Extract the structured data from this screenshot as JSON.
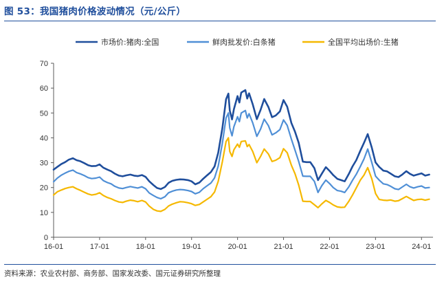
{
  "figure": {
    "title": "图 53：我国猪肉价格波动情况（元/公斤）",
    "source": "资料来源：农业农村部、商务部、国家发改委、国元证券研究所整理"
  },
  "chart_data": {
    "type": "line",
    "title": "",
    "xlabel": "",
    "ylabel": "",
    "ylim": [
      0,
      70
    ],
    "yticks": [
      0,
      10,
      20,
      30,
      40,
      50,
      60,
      70
    ],
    "xlim": [
      2016.0,
      2024.25
    ],
    "xtick_labels": [
      "16-01",
      "17-01",
      "18-01",
      "19-01",
      "20-01",
      "21-01",
      "22-01",
      "23-01",
      "24-01"
    ],
    "xtick_values": [
      2016,
      2017,
      2018,
      2019,
      2020,
      2021,
      2022,
      2023,
      2024
    ],
    "grid": false,
    "legend": "top",
    "series": [
      {
        "name": "市场价:猪肉:全国",
        "color": "#1f4e9c",
        "x": [
          2016.0,
          2016.08,
          2016.17,
          2016.25,
          2016.33,
          2016.42,
          2016.5,
          2016.58,
          2016.67,
          2016.75,
          2016.83,
          2016.92,
          2017.0,
          2017.08,
          2017.17,
          2017.25,
          2017.33,
          2017.42,
          2017.5,
          2017.58,
          2017.67,
          2017.75,
          2017.83,
          2017.92,
          2018.0,
          2018.08,
          2018.17,
          2018.25,
          2018.33,
          2018.42,
          2018.5,
          2018.58,
          2018.67,
          2018.75,
          2018.83,
          2018.92,
          2019.0,
          2019.08,
          2019.17,
          2019.25,
          2019.33,
          2019.42,
          2019.5,
          2019.58,
          2019.67,
          2019.75,
          2019.8,
          2019.83,
          2019.88,
          2019.92,
          2020.0,
          2020.04,
          2020.08,
          2020.17,
          2020.21,
          2020.25,
          2020.33,
          2020.42,
          2020.5,
          2020.58,
          2020.67,
          2020.75,
          2020.83,
          2020.92,
          2021.0,
          2021.08,
          2021.17,
          2021.25,
          2021.33,
          2021.42,
          2021.5,
          2021.58,
          2021.67,
          2021.75,
          2021.83,
          2021.92,
          2022.0,
          2022.08,
          2022.17,
          2022.25,
          2022.33,
          2022.42,
          2022.5,
          2022.58,
          2022.67,
          2022.75,
          2022.83,
          2022.92,
          2023.0,
          2023.08,
          2023.17,
          2023.25,
          2023.33,
          2023.42,
          2023.5,
          2023.58,
          2023.67,
          2023.75,
          2023.83,
          2023.92,
          2024.0,
          2024.08,
          2024.17
        ],
        "values": [
          27.2,
          28.3,
          29.5,
          30.2,
          31.2,
          31.8,
          31.0,
          30.6,
          29.8,
          29.0,
          28.6,
          28.7,
          29.3,
          28.0,
          27.2,
          26.6,
          25.6,
          24.8,
          24.5,
          24.9,
          25.2,
          24.8,
          24.6,
          25.0,
          24.3,
          22.5,
          21.0,
          19.8,
          19.4,
          20.2,
          21.9,
          22.7,
          23.1,
          23.3,
          23.2,
          23.0,
          22.5,
          21.3,
          22.0,
          23.5,
          24.8,
          26.2,
          28.5,
          34.0,
          44.0,
          55.5,
          57.8,
          51.0,
          47.4,
          51.5,
          56.8,
          54.2,
          58.2,
          59.2,
          55.8,
          57.9,
          53.5,
          47.5,
          51.2,
          55.6,
          52.4,
          48.3,
          49.0,
          50.6,
          55.2,
          52.5,
          46.0,
          42.4,
          38.0,
          30.4,
          30.2,
          30.2,
          27.8,
          23.0,
          25.5,
          28.2,
          26.7,
          25.0,
          23.5,
          23.0,
          22.5,
          25.5,
          28.5,
          31.0,
          34.8,
          38.0,
          41.5,
          36.0,
          30.1,
          28.3,
          26.8,
          26.5,
          25.6,
          24.5,
          24.2,
          25.2,
          26.6,
          25.5,
          24.8,
          25.3,
          25.7,
          24.8,
          25.2
        ]
      },
      {
        "name": "鲜肉批发价:白条猪",
        "color": "#4f8fd6",
        "x": [
          2016.0,
          2016.08,
          2016.17,
          2016.25,
          2016.33,
          2016.42,
          2016.5,
          2016.58,
          2016.67,
          2016.75,
          2016.83,
          2016.92,
          2017.0,
          2017.08,
          2017.17,
          2017.25,
          2017.33,
          2017.42,
          2017.5,
          2017.58,
          2017.67,
          2017.75,
          2017.83,
          2017.92,
          2018.0,
          2018.08,
          2018.17,
          2018.25,
          2018.33,
          2018.42,
          2018.5,
          2018.58,
          2018.67,
          2018.75,
          2018.83,
          2018.92,
          2019.0,
          2019.08,
          2019.17,
          2019.25,
          2019.33,
          2019.42,
          2019.5,
          2019.58,
          2019.67,
          2019.75,
          2019.8,
          2019.83,
          2019.88,
          2019.92,
          2020.0,
          2020.04,
          2020.08,
          2020.17,
          2020.21,
          2020.25,
          2020.33,
          2020.42,
          2020.5,
          2020.58,
          2020.67,
          2020.75,
          2020.83,
          2020.92,
          2021.0,
          2021.08,
          2021.17,
          2021.25,
          2021.33,
          2021.42,
          2021.5,
          2021.58,
          2021.67,
          2021.75,
          2021.83,
          2021.92,
          2022.0,
          2022.08,
          2022.17,
          2022.25,
          2022.33,
          2022.42,
          2022.5,
          2022.58,
          2022.67,
          2022.75,
          2022.83,
          2022.92,
          2023.0,
          2023.08,
          2023.17,
          2023.25,
          2023.33,
          2023.42,
          2023.5,
          2023.58,
          2023.67,
          2023.75,
          2023.83,
          2023.92,
          2024.0,
          2024.08,
          2024.17
        ],
        "values": [
          22.3,
          23.8,
          25.0,
          25.8,
          26.5,
          27.0,
          26.0,
          25.5,
          24.8,
          24.0,
          23.6,
          23.8,
          24.2,
          22.8,
          22.0,
          21.5,
          20.5,
          19.8,
          19.6,
          20.0,
          20.4,
          20.1,
          19.8,
          20.3,
          19.5,
          17.8,
          16.8,
          16.0,
          15.5,
          16.3,
          17.9,
          18.5,
          19.0,
          19.2,
          19.1,
          18.8,
          18.4,
          17.5,
          18.1,
          19.5,
          20.6,
          21.8,
          23.9,
          28.6,
          38.0,
          48.0,
          50.0,
          44.0,
          40.8,
          44.5,
          48.5,
          46.5,
          50.0,
          51.0,
          48.0,
          49.7,
          46.0,
          40.6,
          43.5,
          47.5,
          44.9,
          41.2,
          42.0,
          43.3,
          47.2,
          45.0,
          39.5,
          35.0,
          30.5,
          24.6,
          24.5,
          24.5,
          22.5,
          18.0,
          20.7,
          23.0,
          21.6,
          20.0,
          18.8,
          18.5,
          18.0,
          20.3,
          22.9,
          25.3,
          28.5,
          31.5,
          35.5,
          30.0,
          24.6,
          23.0,
          21.5,
          21.2,
          20.5,
          19.5,
          19.2,
          20.2,
          21.3,
          20.3,
          19.8,
          20.3,
          20.6,
          19.8,
          20.0
        ]
      },
      {
        "name": "全国平均出场价:生猪",
        "color": "#f5b800",
        "x": [
          2016.0,
          2016.08,
          2016.17,
          2016.25,
          2016.33,
          2016.42,
          2016.5,
          2016.58,
          2016.67,
          2016.75,
          2016.83,
          2016.92,
          2017.0,
          2017.08,
          2017.17,
          2017.25,
          2017.33,
          2017.42,
          2017.5,
          2017.58,
          2017.67,
          2017.75,
          2017.83,
          2017.92,
          2018.0,
          2018.08,
          2018.17,
          2018.25,
          2018.33,
          2018.42,
          2018.5,
          2018.58,
          2018.67,
          2018.75,
          2018.83,
          2018.92,
          2019.0,
          2019.08,
          2019.17,
          2019.25,
          2019.33,
          2019.42,
          2019.5,
          2019.58,
          2019.67,
          2019.75,
          2019.8,
          2019.83,
          2019.88,
          2019.92,
          2020.0,
          2020.04,
          2020.08,
          2020.17,
          2020.21,
          2020.25,
          2020.33,
          2020.42,
          2020.5,
          2020.58,
          2020.67,
          2020.75,
          2020.83,
          2020.92,
          2021.0,
          2021.08,
          2021.17,
          2021.25,
          2021.33,
          2021.42,
          2021.5,
          2021.58,
          2021.67,
          2021.75,
          2021.83,
          2021.92,
          2022.0,
          2022.08,
          2022.17,
          2022.25,
          2022.33,
          2022.42,
          2022.5,
          2022.58,
          2022.67,
          2022.75,
          2022.83,
          2022.92,
          2023.0,
          2023.08,
          2023.17,
          2023.25,
          2023.33,
          2023.42,
          2023.5,
          2023.58,
          2023.67,
          2023.75,
          2023.83,
          2023.92,
          2024.0,
          2024.08,
          2024.17
        ],
        "values": [
          17.0,
          18.3,
          19.0,
          19.6,
          20.0,
          20.3,
          19.5,
          18.9,
          18.1,
          17.4,
          17.0,
          17.3,
          17.9,
          16.8,
          16.0,
          15.5,
          14.8,
          14.2,
          14.0,
          14.5,
          14.9,
          14.7,
          14.3,
          14.8,
          14.2,
          12.5,
          11.2,
          10.6,
          10.4,
          11.2,
          12.6,
          13.3,
          13.9,
          14.3,
          14.2,
          13.9,
          13.5,
          12.8,
          13.2,
          14.2,
          15.2,
          16.3,
          18.2,
          22.5,
          30.5,
          38.5,
          40.0,
          34.5,
          32.5,
          35.2,
          37.5,
          36.2,
          38.5,
          38.8,
          36.5,
          37.3,
          34.5,
          30.0,
          32.5,
          35.5,
          33.5,
          30.5,
          31.0,
          32.0,
          35.6,
          34.0,
          29.0,
          25.5,
          21.0,
          14.5,
          14.4,
          14.4,
          13.1,
          11.9,
          13.4,
          14.8,
          14.0,
          13.0,
          12.2,
          12.0,
          12.1,
          14.5,
          17.0,
          19.8,
          23.0,
          25.0,
          28.0,
          23.5,
          17.6,
          15.2,
          14.9,
          14.8,
          15.0,
          14.5,
          14.7,
          15.5,
          16.4,
          15.6,
          14.8,
          15.2,
          15.3,
          14.9,
          15.3
        ]
      }
    ]
  }
}
